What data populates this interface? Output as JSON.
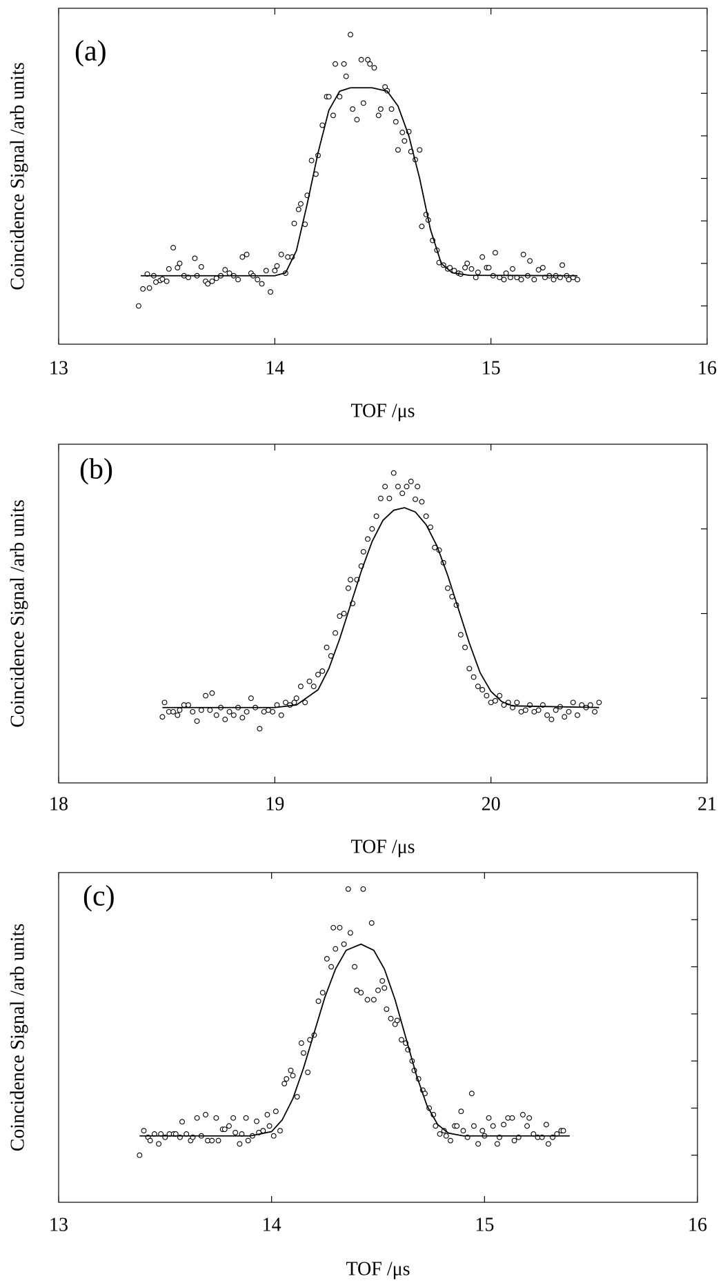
{
  "chart_data": [
    {
      "type": "scatter",
      "panel_label": "(a)",
      "xlabel": "TOF /μs",
      "ylabel": "Coincidence Signal /arb units",
      "xlim": [
        13,
        16
      ],
      "xticks": [
        13,
        14,
        15,
        16
      ],
      "ylim": [
        0.1,
        8
      ],
      "yticks": [
        1,
        2,
        3,
        4,
        5,
        6,
        7
      ],
      "series": [
        {
          "style": "points",
          "color": "#000000",
          "x": [
            13.37,
            13.39,
            13.41,
            13.42,
            13.44,
            13.45,
            13.47,
            13.48,
            13.5,
            13.51,
            13.53,
            13.55,
            13.56,
            13.58,
            13.6,
            13.63,
            13.64,
            13.66,
            13.68,
            13.69,
            13.71,
            13.73,
            13.75,
            13.77,
            13.79,
            13.81,
            13.83,
            13.85,
            13.87,
            13.89,
            13.9,
            13.92,
            13.94,
            13.96,
            13.98,
            14.0,
            14.01,
            14.03,
            14.05,
            14.06,
            14.08,
            14.09,
            14.11,
            14.12,
            14.14,
            14.15,
            14.17,
            14.19,
            14.2,
            14.22,
            14.24,
            14.25,
            14.27,
            14.28,
            14.3,
            14.32,
            14.33,
            14.35,
            14.36,
            14.38,
            14.4,
            14.41,
            14.43,
            14.44,
            14.46,
            14.48,
            14.49,
            14.51,
            14.52,
            14.54,
            14.56,
            14.57,
            14.59,
            14.6,
            14.62,
            14.63,
            14.65,
            14.67,
            14.68,
            14.7,
            14.71,
            14.73,
            14.75,
            14.76,
            14.78,
            14.8,
            14.81,
            14.83,
            14.85,
            14.86,
            14.88,
            14.89,
            14.91,
            14.93,
            14.94,
            14.96,
            14.98,
            14.99,
            15.01,
            15.02,
            15.04,
            15.06,
            15.07,
            15.09,
            15.1,
            15.12,
            15.14,
            15.15,
            15.17,
            15.18,
            15.2,
            15.22,
            15.24,
            15.25,
            15.27,
            15.29,
            15.3,
            15.32,
            15.33,
            15.35,
            15.36,
            15.38,
            15.4
          ],
          "values": [
            1.0,
            1.4,
            1.75,
            1.42,
            1.71,
            1.56,
            1.6,
            1.63,
            1.58,
            1.87,
            2.37,
            1.9,
            2.0,
            1.71,
            1.67,
            2.12,
            1.71,
            1.92,
            1.58,
            1.52,
            1.58,
            1.65,
            1.71,
            1.85,
            1.77,
            1.71,
            1.62,
            2.15,
            2.21,
            1.77,
            1.71,
            1.62,
            1.52,
            1.83,
            1.33,
            1.83,
            1.94,
            2.21,
            1.77,
            2.15,
            2.15,
            2.94,
            3.27,
            3.4,
            2.92,
            3.6,
            4.42,
            4.1,
            4.54,
            5.25,
            5.92,
            5.92,
            5.48,
            6.69,
            5.92,
            6.69,
            6.4,
            7.38,
            5.63,
            5.38,
            6.79,
            5.77,
            6.79,
            6.69,
            6.6,
            5.48,
            5.63,
            6.15,
            6.06,
            5.63,
            5.33,
            4.67,
            5.08,
            4.88,
            5.1,
            4.63,
            4.44,
            4.67,
            2.87,
            3.15,
            3.02,
            2.54,
            2.31,
            2.02,
            1.96,
            1.87,
            1.9,
            1.83,
            1.77,
            1.75,
            1.9,
            2.0,
            1.87,
            1.67,
            1.79,
            2.15,
            1.9,
            1.9,
            1.71,
            2.25,
            1.67,
            1.62,
            1.77,
            1.67,
            1.87,
            1.67,
            1.62,
            2.21,
            1.71,
            2.06,
            1.62,
            1.85,
            1.9,
            1.67,
            1.71,
            1.62,
            1.71,
            1.67,
            1.96,
            1.71,
            1.62,
            1.67,
            1.62
          ]
        },
        {
          "style": "line",
          "color": "#000000",
          "x": [
            13.38,
            14.0,
            14.05,
            14.1,
            14.15,
            14.2,
            14.25,
            14.3,
            14.35,
            14.45,
            14.52,
            14.57,
            14.62,
            14.67,
            14.72,
            14.77,
            14.82,
            14.9,
            15.4
          ],
          "values": [
            1.71,
            1.71,
            1.78,
            2.3,
            3.4,
            4.6,
            5.6,
            6.05,
            6.13,
            6.13,
            6.05,
            5.7,
            5.0,
            4.0,
            2.8,
            2.0,
            1.78,
            1.72,
            1.71
          ]
        }
      ]
    },
    {
      "type": "scatter",
      "panel_label": "(b)",
      "xlabel": "TOF /μs",
      "ylabel": "Coincidence Signal /arb units",
      "xlim": [
        18,
        21
      ],
      "xticks": [
        18,
        19,
        20,
        21
      ],
      "ylim": [
        0,
        4
      ],
      "yticks": [
        1,
        2,
        3
      ],
      "series": [
        {
          "style": "points",
          "color": "#000000",
          "x": [
            18.48,
            18.49,
            18.51,
            18.53,
            18.55,
            18.56,
            18.58,
            18.6,
            18.62,
            18.64,
            18.66,
            18.68,
            18.7,
            18.71,
            18.73,
            18.75,
            18.77,
            18.79,
            18.81,
            18.83,
            18.85,
            18.87,
            18.89,
            18.91,
            18.93,
            18.95,
            18.97,
            18.99,
            19.01,
            19.03,
            19.05,
            19.07,
            19.09,
            19.1,
            19.12,
            19.14,
            19.16,
            19.18,
            19.2,
            19.22,
            19.24,
            19.26,
            19.28,
            19.3,
            19.32,
            19.34,
            19.35,
            19.36,
            19.38,
            19.4,
            19.41,
            19.43,
            19.45,
            19.47,
            19.49,
            19.51,
            19.53,
            19.55,
            19.57,
            19.59,
            19.61,
            19.63,
            19.65,
            19.66,
            19.68,
            19.7,
            19.72,
            19.74,
            19.76,
            19.78,
            19.8,
            19.82,
            19.84,
            19.86,
            19.88,
            19.9,
            19.92,
            19.94,
            19.96,
            19.98,
            20.0,
            20.02,
            20.04,
            20.06,
            20.08,
            20.1,
            20.12,
            20.14,
            20.16,
            20.18,
            20.2,
            20.22,
            20.24,
            20.26,
            20.28,
            20.3,
            20.32,
            20.34,
            20.36,
            20.38,
            20.4,
            20.42,
            20.44,
            20.46,
            20.48,
            20.5
          ],
          "values": [
            0.78,
            0.95,
            0.84,
            0.84,
            0.8,
            0.86,
            0.92,
            0.92,
            0.84,
            0.73,
            0.86,
            1.03,
            0.86,
            1.06,
            0.8,
            0.89,
            0.75,
            0.84,
            0.8,
            0.89,
            0.77,
            0.84,
            1.0,
            0.89,
            0.64,
            0.84,
            0.86,
            0.84,
            0.92,
            0.8,
            0.95,
            0.92,
            0.95,
            1.0,
            1.14,
            0.95,
            1.2,
            1.14,
            1.28,
            1.32,
            1.6,
            1.5,
            1.77,
            1.97,
            2.0,
            2.3,
            2.4,
            2.12,
            2.4,
            2.56,
            2.73,
            2.88,
            3.0,
            3.15,
            3.36,
            3.5,
            3.36,
            3.66,
            3.5,
            3.42,
            3.5,
            3.56,
            3.35,
            3.5,
            3.32,
            3.15,
            3.02,
            2.78,
            2.75,
            2.6,
            2.3,
            2.2,
            2.1,
            1.75,
            1.6,
            1.35,
            1.25,
            1.14,
            1.1,
            1.03,
            0.95,
            0.97,
            1.03,
            0.92,
            0.95,
            0.89,
            0.95,
            0.84,
            0.86,
            0.92,
            0.84,
            0.86,
            0.92,
            0.8,
            0.75,
            0.86,
            0.9,
            0.78,
            0.84,
            0.95,
            0.8,
            0.92,
            0.89,
            0.92,
            0.84,
            0.95
          ]
        },
        {
          "style": "line",
          "color": "#000000",
          "x": [
            18.48,
            19.0,
            19.1,
            19.2,
            19.25,
            19.3,
            19.35,
            19.4,
            19.45,
            19.5,
            19.55,
            19.6,
            19.65,
            19.7,
            19.75,
            19.8,
            19.85,
            19.9,
            19.95,
            20.0,
            20.05,
            20.1,
            20.5
          ],
          "values": [
            0.89,
            0.89,
            0.92,
            1.1,
            1.35,
            1.7,
            2.1,
            2.5,
            2.85,
            3.1,
            3.22,
            3.25,
            3.2,
            3.05,
            2.8,
            2.45,
            2.05,
            1.65,
            1.3,
            1.08,
            0.96,
            0.91,
            0.89
          ]
        }
      ]
    },
    {
      "type": "scatter",
      "panel_label": "(c)",
      "xlabel": "TOF /μs",
      "ylabel": "Coincidence Signal /arb units",
      "xlim": [
        13,
        16
      ],
      "xticks": [
        13,
        14,
        15,
        16
      ],
      "ylim": [
        0,
        7
      ],
      "yticks": [
        1,
        2,
        3,
        4,
        5,
        6
      ],
      "series": [
        {
          "style": "points",
          "color": "#000000",
          "x": [
            13.38,
            13.4,
            13.42,
            13.43,
            13.45,
            13.47,
            13.48,
            13.5,
            13.52,
            13.54,
            13.55,
            13.57,
            13.58,
            13.6,
            13.62,
            13.63,
            13.65,
            13.67,
            13.69,
            13.7,
            13.72,
            13.74,
            13.75,
            13.77,
            13.78,
            13.8,
            13.82,
            13.83,
            13.85,
            13.86,
            13.88,
            13.89,
            13.91,
            13.93,
            13.94,
            13.96,
            13.98,
            13.99,
            14.01,
            14.02,
            14.04,
            14.06,
            14.07,
            14.09,
            14.1,
            14.12,
            14.14,
            14.15,
            14.17,
            14.18,
            14.2,
            14.22,
            14.24,
            14.26,
            14.28,
            14.29,
            14.3,
            14.32,
            14.34,
            14.36,
            14.37,
            14.39,
            14.4,
            14.42,
            14.43,
            14.45,
            14.47,
            14.48,
            14.5,
            14.52,
            14.53,
            14.54,
            14.56,
            14.58,
            14.59,
            14.61,
            14.63,
            14.64,
            14.66,
            14.67,
            14.69,
            14.71,
            14.72,
            14.74,
            14.76,
            14.77,
            14.79,
            14.81,
            14.82,
            14.84,
            14.86,
            14.87,
            14.89,
            14.9,
            14.92,
            14.94,
            14.95,
            14.97,
            14.99,
            15.0,
            15.02,
            15.04,
            15.06,
            15.07,
            15.09,
            15.11,
            15.13,
            15.14,
            15.16,
            15.18,
            15.2,
            15.21,
            15.23,
            15.25,
            15.27,
            15.29,
            15.3,
            15.32,
            15.34,
            15.36,
            15.37
          ],
          "values": [
            1.0,
            1.52,
            1.38,
            1.31,
            1.45,
            1.24,
            1.45,
            1.38,
            1.45,
            1.45,
            1.45,
            1.38,
            1.71,
            1.45,
            1.31,
            1.38,
            1.79,
            1.41,
            1.86,
            1.31,
            1.31,
            1.79,
            1.31,
            1.55,
            1.55,
            1.62,
            1.79,
            1.48,
            1.24,
            1.45,
            1.79,
            1.31,
            1.41,
            1.72,
            1.48,
            1.52,
            1.86,
            1.62,
            1.41,
            1.93,
            1.52,
            2.52,
            2.62,
            2.8,
            2.69,
            2.24,
            3.38,
            3.17,
            2.76,
            3.45,
            3.55,
            4.27,
            4.45,
            5.17,
            5.0,
            5.83,
            5.38,
            5.83,
            5.48,
            6.65,
            5.72,
            5.0,
            4.5,
            4.45,
            6.65,
            4.3,
            5.93,
            4.3,
            4.5,
            4.7,
            4.55,
            4.1,
            3.9,
            3.78,
            3.86,
            3.45,
            3.38,
            3.24,
            3.0,
            2.8,
            2.62,
            2.38,
            2.31,
            2.0,
            1.86,
            1.62,
            1.45,
            1.52,
            1.41,
            1.31,
            1.62,
            1.62,
            1.93,
            1.52,
            1.38,
            2.31,
            1.62,
            1.24,
            1.52,
            1.41,
            1.79,
            1.62,
            1.24,
            1.38,
            1.65,
            1.79,
            1.79,
            1.31,
            1.38,
            1.86,
            1.62,
            1.79,
            1.45,
            1.38,
            1.38,
            1.65,
            1.24,
            1.38,
            1.45,
            1.52,
            1.52
          ]
        },
        {
          "style": "line",
          "color": "#000000",
          "x": [
            13.38,
            13.9,
            14.0,
            14.05,
            14.1,
            14.15,
            14.2,
            14.25,
            14.3,
            14.35,
            14.42,
            14.48,
            14.53,
            14.58,
            14.63,
            14.68,
            14.73,
            14.78,
            14.83,
            14.9,
            15.4
          ],
          "values": [
            1.41,
            1.41,
            1.5,
            1.75,
            2.2,
            2.85,
            3.6,
            4.35,
            4.95,
            5.35,
            5.48,
            5.35,
            4.95,
            4.3,
            3.5,
            2.7,
            2.05,
            1.65,
            1.47,
            1.41,
            1.41
          ]
        }
      ]
    }
  ]
}
